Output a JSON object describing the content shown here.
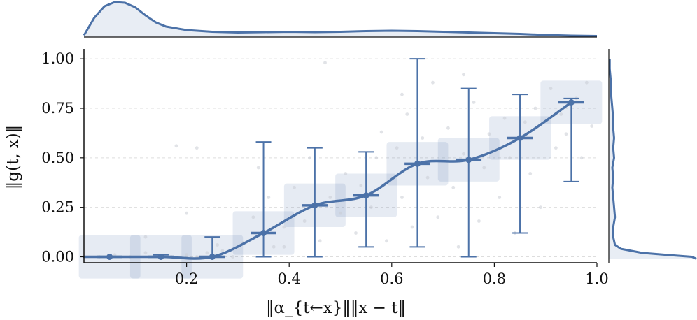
{
  "chart_data": {
    "type": "scatter",
    "title": "",
    "xlabel": "‖α_{t←x}‖‖x − t‖",
    "ylabel": "‖g(t, x)‖",
    "xlim": [
      0.0,
      1.0
    ],
    "ylim": [
      -0.03,
      1.05
    ],
    "xticks": [
      0.2,
      0.4,
      0.6,
      0.8,
      1.0
    ],
    "yticks": [
      0.0,
      0.25,
      0.5,
      0.75,
      1.0
    ],
    "xtick_labels": [
      "0.2",
      "0.4",
      "0.6",
      "0.8",
      "1.0"
    ],
    "ytick_labels": [
      "0.00",
      "0.25",
      "0.50",
      "0.75",
      "1.00"
    ],
    "grid": "horizontal dashed",
    "color": "#4c72a8",
    "bins": [
      {
        "center": 0.05,
        "mean": 0.0,
        "lower": 0.0,
        "upper": 0.0
      },
      {
        "center": 0.15,
        "mean": 0.0,
        "lower": 0.0,
        "upper": 0.01
      },
      {
        "center": 0.25,
        "mean": 0.0,
        "lower": 0.0,
        "upper": 0.1
      },
      {
        "center": 0.35,
        "mean": 0.12,
        "lower": 0.0,
        "upper": 0.58
      },
      {
        "center": 0.45,
        "mean": 0.26,
        "lower": 0.0,
        "upper": 0.55
      },
      {
        "center": 0.55,
        "mean": 0.31,
        "lower": 0.05,
        "upper": 0.53
      },
      {
        "center": 0.65,
        "mean": 0.47,
        "lower": 0.05,
        "upper": 1.0
      },
      {
        "center": 0.75,
        "mean": 0.49,
        "lower": 0.0,
        "upper": 0.85
      },
      {
        "center": 0.85,
        "mean": 0.6,
        "lower": 0.12,
        "upper": 0.82
      },
      {
        "center": 0.95,
        "mean": 0.78,
        "lower": 0.38,
        "upper": 0.8
      }
    ],
    "scatter_points": [
      [
        0.03,
        0.0
      ],
      [
        0.06,
        0.01
      ],
      [
        0.09,
        0.0
      ],
      [
        0.12,
        0.02
      ],
      [
        0.17,
        0.0
      ],
      [
        0.2,
        0.01
      ],
      [
        0.22,
        0.0
      ],
      [
        0.24,
        0.02
      ],
      [
        0.27,
        0.03
      ],
      [
        0.29,
        0.0
      ],
      [
        0.18,
        0.56
      ],
      [
        0.22,
        0.55
      ],
      [
        0.31,
        0.07
      ],
      [
        0.33,
        0.2
      ],
      [
        0.34,
        0.45
      ],
      [
        0.36,
        0.3
      ],
      [
        0.37,
        0.05
      ],
      [
        0.39,
        0.15
      ],
      [
        0.41,
        0.35
      ],
      [
        0.43,
        0.18
      ],
      [
        0.44,
        0.5
      ],
      [
        0.46,
        0.08
      ],
      [
        0.48,
        0.3
      ],
      [
        0.5,
        0.22
      ],
      [
        0.51,
        0.42
      ],
      [
        0.53,
        0.12
      ],
      [
        0.54,
        0.36
      ],
      [
        0.56,
        0.25
      ],
      [
        0.57,
        0.5
      ],
      [
        0.58,
        0.63
      ],
      [
        0.59,
        0.08
      ],
      [
        0.61,
        0.55
      ],
      [
        0.62,
        0.3
      ],
      [
        0.63,
        0.72
      ],
      [
        0.64,
        0.15
      ],
      [
        0.66,
        0.6
      ],
      [
        0.67,
        0.4
      ],
      [
        0.68,
        0.88
      ],
      [
        0.69,
        0.2
      ],
      [
        0.71,
        0.65
      ],
      [
        0.72,
        0.35
      ],
      [
        0.73,
        0.05
      ],
      [
        0.74,
        0.52
      ],
      [
        0.76,
        0.78
      ],
      [
        0.77,
        0.18
      ],
      [
        0.78,
        0.45
      ],
      [
        0.79,
        0.62
      ],
      [
        0.81,
        0.3
      ],
      [
        0.82,
        0.7
      ],
      [
        0.83,
        0.5
      ],
      [
        0.84,
        0.12
      ],
      [
        0.86,
        0.68
      ],
      [
        0.87,
        0.42
      ],
      [
        0.88,
        0.75
      ],
      [
        0.89,
        0.25
      ],
      [
        0.91,
        0.85
      ],
      [
        0.92,
        0.55
      ],
      [
        0.93,
        0.72
      ],
      [
        0.94,
        0.62
      ],
      [
        0.96,
        0.8
      ],
      [
        0.97,
        0.5
      ],
      [
        0.98,
        0.88
      ],
      [
        0.99,
        0.66
      ],
      [
        0.47,
        0.98
      ],
      [
        0.62,
        0.82
      ],
      [
        0.74,
        0.92
      ],
      [
        0.12,
        0.1
      ],
      [
        0.2,
        0.22
      ],
      [
        0.26,
        0.06
      ],
      [
        0.39,
        0.05
      ]
    ],
    "x_marginal_density": [
      [
        0.0,
        0.05
      ],
      [
        0.02,
        0.55
      ],
      [
        0.04,
        0.88
      ],
      [
        0.06,
        1.0
      ],
      [
        0.08,
        0.98
      ],
      [
        0.1,
        0.85
      ],
      [
        0.12,
        0.62
      ],
      [
        0.14,
        0.42
      ],
      [
        0.16,
        0.3
      ],
      [
        0.2,
        0.2
      ],
      [
        0.25,
        0.15
      ],
      [
        0.3,
        0.13
      ],
      [
        0.35,
        0.14
      ],
      [
        0.4,
        0.15
      ],
      [
        0.45,
        0.14
      ],
      [
        0.5,
        0.15
      ],
      [
        0.55,
        0.17
      ],
      [
        0.6,
        0.18
      ],
      [
        0.65,
        0.17
      ],
      [
        0.7,
        0.15
      ],
      [
        0.75,
        0.13
      ],
      [
        0.8,
        0.11
      ],
      [
        0.85,
        0.09
      ],
      [
        0.9,
        0.06
      ],
      [
        0.95,
        0.04
      ],
      [
        1.0,
        0.03
      ]
    ],
    "y_marginal_density": [
      [
        -0.01,
        1.0
      ],
      [
        0.0,
        0.95
      ],
      [
        0.01,
        0.65
      ],
      [
        0.02,
        0.38
      ],
      [
        0.04,
        0.14
      ],
      [
        0.06,
        0.07
      ],
      [
        0.1,
        0.05
      ],
      [
        0.15,
        0.05
      ],
      [
        0.2,
        0.07
      ],
      [
        0.25,
        0.06
      ],
      [
        0.3,
        0.05
      ],
      [
        0.35,
        0.04
      ],
      [
        0.4,
        0.05
      ],
      [
        0.45,
        0.04
      ],
      [
        0.5,
        0.06
      ],
      [
        0.55,
        0.05
      ],
      [
        0.6,
        0.06
      ],
      [
        0.65,
        0.05
      ],
      [
        0.7,
        0.05
      ],
      [
        0.75,
        0.04
      ],
      [
        0.8,
        0.03
      ],
      [
        0.85,
        0.02
      ],
      [
        0.9,
        0.02
      ],
      [
        0.95,
        0.01
      ],
      [
        1.0,
        0.01
      ]
    ]
  }
}
